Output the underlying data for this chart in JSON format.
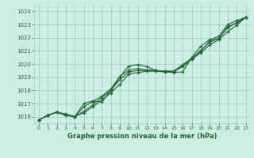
{
  "bg_color": "#cceee4",
  "grid_color": "#aad4c8",
  "line_color": "#1a6b2a",
  "text_color": "#1a6b2a",
  "xlabel": "Graphe pression niveau de la mer (hPa)",
  "xlim": [
    -0.5,
    23.5
  ],
  "ylim": [
    1015.5,
    1024.5
  ],
  "yticks": [
    1016,
    1017,
    1018,
    1019,
    1020,
    1021,
    1022,
    1023,
    1024
  ],
  "xticks": [
    0,
    1,
    2,
    3,
    4,
    5,
    6,
    7,
    8,
    9,
    10,
    11,
    12,
    13,
    14,
    15,
    16,
    17,
    18,
    19,
    20,
    21,
    22,
    23
  ],
  "series": [
    [
      1015.75,
      1016.1,
      1016.35,
      1016.1,
      1016.0,
      1017.0,
      1017.2,
      1017.1,
      1018.0,
      1019.0,
      1019.85,
      1019.95,
      1019.8,
      1019.5,
      1019.4,
      1019.35,
      1019.4,
      1020.5,
      1021.35,
      1021.85,
      1022.1,
      1023.0,
      1023.3,
      1023.55
    ],
    [
      1015.75,
      1016.1,
      1016.35,
      1016.1,
      1016.0,
      1016.4,
      1016.9,
      1017.45,
      1018.0,
      1018.8,
      1019.4,
      1019.5,
      1019.5,
      1019.5,
      1019.45,
      1019.45,
      1019.9,
      1020.45,
      1020.95,
      1021.75,
      1021.95,
      1022.75,
      1023.15,
      1023.55
    ],
    [
      1015.75,
      1016.1,
      1016.35,
      1016.2,
      1016.0,
      1016.3,
      1016.75,
      1017.25,
      1017.8,
      1018.45,
      1019.25,
      1019.35,
      1019.45,
      1019.45,
      1019.4,
      1019.4,
      1019.8,
      1020.35,
      1020.85,
      1021.45,
      1021.85,
      1022.45,
      1022.95,
      1023.55
    ],
    [
      1015.75,
      1016.1,
      1016.35,
      1016.15,
      1016.0,
      1016.75,
      1017.15,
      1017.55,
      1018.1,
      1019.05,
      1019.55,
      1019.65,
      1019.55,
      1019.5,
      1019.45,
      1019.45,
      1019.95,
      1020.4,
      1021.05,
      1021.65,
      1021.95,
      1022.85,
      1023.1,
      1023.55
    ]
  ]
}
